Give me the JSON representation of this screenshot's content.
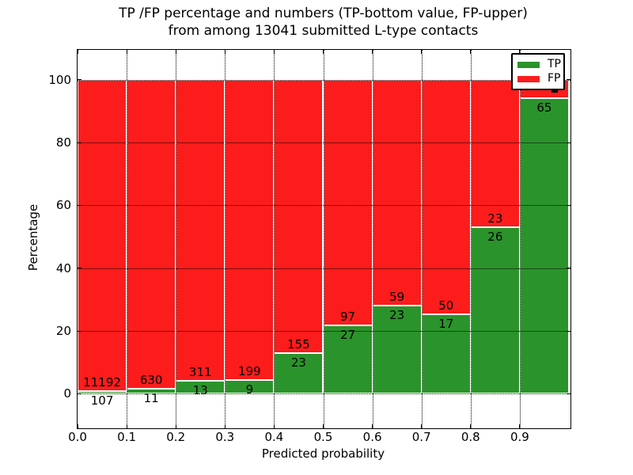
{
  "title": {
    "line1": "TP /FP percentage and numbers (TP-bottom value, FP-upper)",
    "line2": "from among 13041 submitted L-type contacts"
  },
  "axes": {
    "xlabel": "Predicted probability",
    "ylabel": "Percentage",
    "xtick_labels": [
      "0.0",
      "0.1",
      "0.2",
      "0.3",
      "0.4",
      "0.5",
      "0.6",
      "0.7",
      "0.8",
      "0.9"
    ],
    "yticks": [
      0,
      20,
      40,
      60,
      80,
      100
    ]
  },
  "legend": {
    "position": "upper right",
    "items": [
      {
        "label": "TP",
        "color": "#2b932b"
      },
      {
        "label": "FP",
        "color": "#fd1c1c"
      }
    ]
  },
  "colors": {
    "tp_green": "#2b932b",
    "fp_red": "#fd1c1c",
    "text": "#000000",
    "background": "#ffffff"
  },
  "chart_data": {
    "type": "bar",
    "stacked": true,
    "unit": "percent",
    "title": "TP /FP percentage and numbers (TP-bottom value, FP-upper) from among 13041 submitted L-type contacts",
    "xlabel": "Predicted probability",
    "ylabel": "Percentage",
    "total_submitted": 13041,
    "bin_edges": [
      0.0,
      0.1,
      0.2,
      0.3,
      0.4,
      0.5,
      0.6,
      0.7,
      0.8,
      0.9,
      1.0
    ],
    "categories": [
      "0.0-0.1",
      "0.1-0.2",
      "0.2-0.3",
      "0.3-0.4",
      "0.4-0.5",
      "0.5-0.6",
      "0.6-0.7",
      "0.7-0.8",
      "0.8-0.9",
      "0.9-1.0"
    ],
    "series": [
      {
        "name": "TP",
        "color": "#2b932b",
        "counts": [
          107,
          11,
          13,
          9,
          23,
          27,
          23,
          17,
          26,
          65
        ],
        "percent": [
          0.95,
          1.72,
          4.01,
          4.33,
          12.92,
          21.77,
          28.05,
          25.37,
          53.06,
          94.2
        ]
      },
      {
        "name": "FP",
        "color": "#fd1c1c",
        "counts": [
          11192,
          630,
          311,
          199,
          155,
          97,
          59,
          50,
          23,
          null
        ],
        "percent": [
          99.05,
          98.28,
          95.99,
          95.67,
          87.08,
          78.23,
          71.95,
          74.63,
          46.94,
          5.8
        ]
      }
    ],
    "annotation_labels": {
      "tp": [
        "107",
        "11",
        "13",
        "9",
        "23",
        "27",
        "23",
        "17",
        "26",
        "65"
      ],
      "fp": [
        "11192",
        "630",
        "311",
        "199",
        "155",
        "97",
        "59",
        "50",
        "23",
        ""
      ]
    },
    "ylim": [
      -10.5,
      109.5
    ],
    "xlim": [
      0.0,
      1.0
    ],
    "grid": true,
    "grid_style": "dotted",
    "legend_position": "upper right"
  }
}
